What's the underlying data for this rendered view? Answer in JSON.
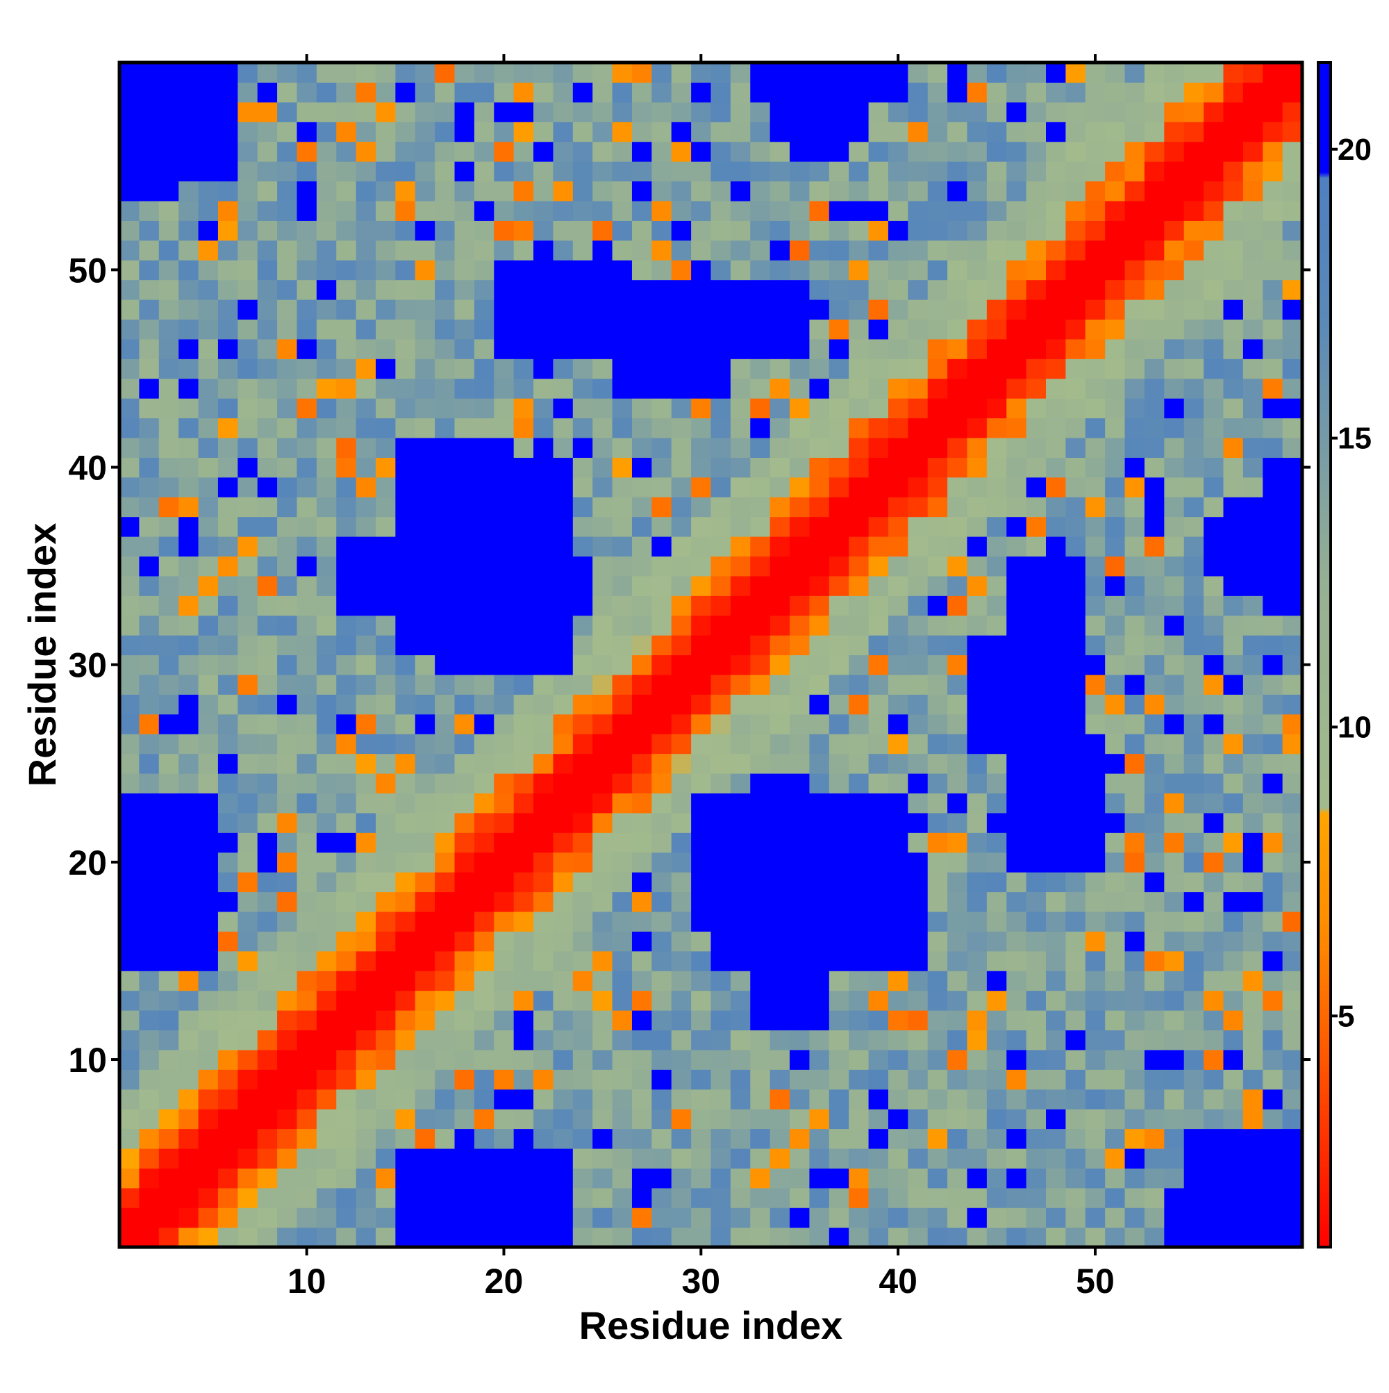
{
  "chart_data": {
    "type": "heatmap",
    "title": "",
    "xlabel": "Residue index",
    "ylabel": "Residue index",
    "n_residues": 60,
    "x_range": [
      1,
      60
    ],
    "y_range": [
      1,
      60
    ],
    "x_ticks": [
      10,
      20,
      30,
      40,
      50
    ],
    "y_ticks": [
      10,
      20,
      30,
      40,
      50
    ],
    "grid": false,
    "colorbar": {
      "placement": "right",
      "range": [
        1,
        21.5
      ],
      "ticks": [
        5,
        10,
        15,
        20
      ],
      "stops": [
        {
          "value": 1,
          "color": "#ff0000"
        },
        {
          "value": 4,
          "color": "#ff5000"
        },
        {
          "value": 6.5,
          "color": "#ff8c00"
        },
        {
          "value": 8.5,
          "color": "#ffa500"
        },
        {
          "value": 8.6,
          "color": "#a3bb8c"
        },
        {
          "value": 12.5,
          "color": "#96b093"
        },
        {
          "value": 17,
          "color": "#5b89b8"
        },
        {
          "value": 19.5,
          "color": "#4f80c0"
        },
        {
          "value": 19.6,
          "color": "#0000ff"
        },
        {
          "value": 21.5,
          "color": "#0000ff"
        }
      ]
    },
    "blue_regions": [
      {
        "x": [
          1,
          6
        ],
        "y": [
          55,
          60
        ]
      },
      {
        "x": [
          1,
          4
        ],
        "y": [
          15,
          23
        ]
      },
      {
        "x": [
          15,
          23
        ],
        "y": [
          1,
          5
        ]
      },
      {
        "x": [
          17,
          23
        ],
        "y": [
          30,
          39
        ]
      },
      {
        "x": [
          12,
          24
        ],
        "y": [
          33,
          35
        ]
      },
      {
        "x": [
          20,
          26
        ],
        "y": [
          46,
          50
        ]
      },
      {
        "x": [
          34,
          38
        ],
        "y": [
          57,
          60
        ]
      },
      {
        "x": [
          31,
          41
        ],
        "y": [
          15,
          20
        ]
      },
      {
        "x": [
          34,
          36
        ],
        "y": [
          12,
          23
        ]
      },
      {
        "x": [
          39,
          40
        ],
        "y": [
          15,
          23
        ]
      },
      {
        "x": [
          44,
          49
        ],
        "y": [
          26,
          31
        ]
      },
      {
        "x": [
          46,
          49
        ],
        "y": [
          32,
          35
        ]
      },
      {
        "x": [
          59,
          60
        ],
        "y": [
          33,
          40
        ]
      },
      {
        "x": [
          58,
          60
        ],
        "y": [
          1,
          6
        ]
      },
      {
        "x": [
          54,
          56
        ],
        "y": [
          1,
          3
        ]
      }
    ],
    "description_of_values": "Pairwise residue distance matrix; values near 1 on the diagonal (red), increasing with sequence separation; blue indicates values above ~19.5"
  }
}
